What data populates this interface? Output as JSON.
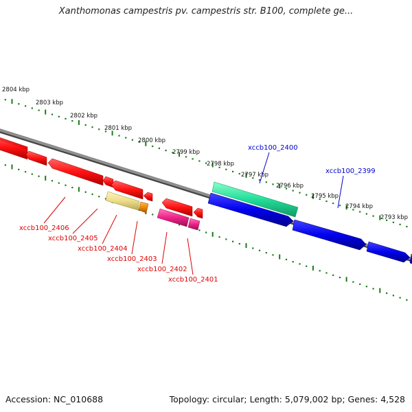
{
  "title": "Xanthomonas campestris pv. campestris str. B100, complete ge...",
  "footer": {
    "accession": "Accession: NC_010688",
    "summary": "Topology: circular; Length: 5,079,002 bp; Genes: 4,528"
  },
  "ruler_labels": [
    {
      "text": "2804 kbp"
    },
    {
      "text": "2803 kbp"
    },
    {
      "text": "2802 kbp"
    },
    {
      "text": "2801 kbp"
    },
    {
      "text": "2800 kbp"
    },
    {
      "text": "2799 kbp"
    },
    {
      "text": "2798 kbp"
    },
    {
      "text": "2797 kbp"
    },
    {
      "text": "2796 kbp"
    },
    {
      "text": "2795 kbp"
    },
    {
      "text": "2794 kbp"
    },
    {
      "text": "2793 kbp"
    }
  ],
  "gene_labels": [
    {
      "text": "xccb100_2406",
      "color": "#dd0000"
    },
    {
      "text": "xccb100_2405",
      "color": "#dd0000"
    },
    {
      "text": "xccb100_2404",
      "color": "#dd0000"
    },
    {
      "text": "xccb100_2403",
      "color": "#dd0000"
    },
    {
      "text": "xccb100_2402",
      "color": "#dd0000"
    },
    {
      "text": "xccb100_2401",
      "color": "#dd0000"
    },
    {
      "text": "xccb100_2400",
      "color": "#0000cc"
    },
    {
      "text": "xccb100_2399",
      "color": "#0000cc"
    }
  ],
  "colors": {
    "backbone": "#808080",
    "ticks": "#1a7a1a",
    "red_gene": "#ff1111",
    "pink_gene": "#ee2288",
    "yellow_gene": "#eedd88",
    "orange_gene": "#ee8800",
    "green_gene": "#22dd99",
    "blue_gene": "#0000ee"
  }
}
